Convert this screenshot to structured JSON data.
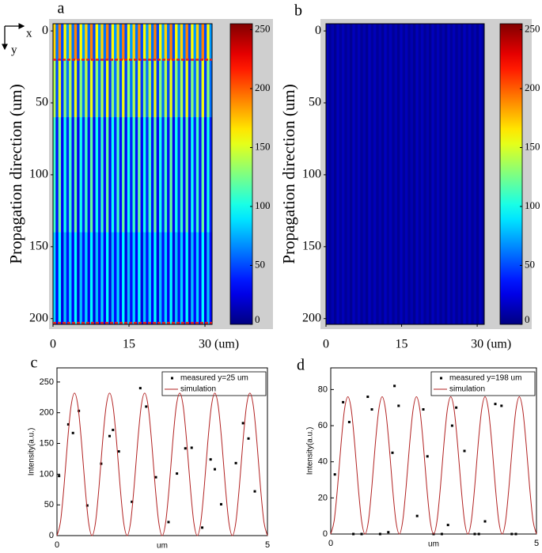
{
  "axes_icon": {
    "x": "x",
    "y": "y"
  },
  "chart_data": [
    {
      "type": "heatmap",
      "panel": "a",
      "ylabel": "Propagation direction (um)",
      "xlim": [
        0,
        31.4
      ],
      "ylim": [
        -5,
        204
      ],
      "y_inverted": true,
      "xticks": [
        0,
        15,
        {
          "value": 30,
          "label": "30 (um)"
        }
      ],
      "yticks": [
        0,
        50,
        100,
        150,
        200
      ],
      "ybins": [
        -5,
        20,
        60,
        140,
        204
      ],
      "z": [
        [
          170,
          60,
          190,
          50,
          160,
          70,
          170,
          60,
          190,
          50,
          160,
          70,
          170,
          60,
          190,
          50,
          160,
          70,
          170,
          60,
          190,
          50,
          160,
          70,
          170,
          60,
          190,
          50,
          160,
          70,
          170,
          60,
          190,
          50,
          160,
          70,
          170,
          60,
          190,
          50,
          160,
          70,
          170,
          60,
          190,
          50,
          160,
          70,
          170,
          60,
          190,
          50,
          160,
          70,
          170,
          60,
          190,
          50,
          160,
          70
        ],
        [
          140,
          50,
          155,
          45,
          130,
          60,
          140,
          50,
          155,
          45,
          130,
          60,
          140,
          50,
          155,
          45,
          130,
          60,
          140,
          50,
          155,
          45,
          130,
          60,
          140,
          50,
          155,
          45,
          130,
          60,
          140,
          50,
          155,
          45,
          130,
          60,
          140,
          50,
          155,
          45,
          130,
          60,
          140,
          50,
          155,
          45,
          130,
          60,
          140,
          50,
          155,
          45,
          130,
          60,
          140,
          50,
          155,
          45,
          130,
          60
        ],
        [
          110,
          35,
          120,
          30,
          100,
          40,
          110,
          35,
          120,
          30,
          100,
          40,
          110,
          35,
          120,
          30,
          100,
          40,
          110,
          35,
          120,
          30,
          100,
          40,
          110,
          35,
          120,
          30,
          100,
          40,
          110,
          35,
          120,
          30,
          100,
          40,
          110,
          35,
          120,
          30,
          100,
          40,
          110,
          35,
          120,
          30,
          100,
          40,
          110,
          35,
          120,
          30,
          100,
          40,
          110,
          35,
          120,
          30,
          100,
          40
        ],
        [
          85,
          30,
          95,
          25,
          80,
          35,
          85,
          30,
          95,
          25,
          80,
          35,
          85,
          30,
          95,
          25,
          80,
          35,
          85,
          30,
          95,
          25,
          80,
          35,
          85,
          30,
          95,
          25,
          80,
          35,
          85,
          30,
          95,
          25,
          80,
          35,
          85,
          30,
          95,
          25,
          80,
          35,
          85,
          30,
          95,
          25,
          80,
          35,
          85,
          30,
          95,
          25,
          80,
          35,
          85,
          30,
          95,
          25,
          80,
          35
        ]
      ],
      "hlines": [
        20,
        203
      ],
      "hline_color": "#e02020",
      "colorbar": {
        "lim": [
          0,
          255
        ],
        "ticks": [
          0,
          50,
          100,
          150,
          200,
          250
        ]
      }
    },
    {
      "type": "heatmap",
      "panel": "b",
      "ylabel": "Propagation direction (um)",
      "xlim": [
        0,
        31.4
      ],
      "ylim": [
        -5,
        204
      ],
      "y_inverted": true,
      "xticks": [
        0,
        15,
        {
          "value": 30,
          "label": "30 (um)"
        }
      ],
      "yticks": [
        0,
        50,
        100,
        150,
        200
      ],
      "ybins": [
        -5,
        204
      ],
      "z": [
        [
          14,
          6,
          12,
          5,
          15,
          7,
          14,
          6,
          12,
          5,
          15,
          7,
          14,
          6,
          12,
          5,
          15,
          7,
          14,
          6,
          12,
          5,
          15,
          7,
          14,
          6,
          12,
          5,
          15,
          7,
          14,
          6,
          12,
          5,
          15,
          7,
          14,
          6,
          12,
          5,
          15,
          7,
          14,
          6,
          12,
          5,
          15,
          7,
          14,
          6,
          12,
          5,
          15,
          7,
          14,
          6,
          12,
          5,
          15,
          7
        ]
      ],
      "colorbar": {
        "lim": [
          0,
          255
        ],
        "ticks": [
          0,
          50,
          100,
          150,
          200,
          250
        ]
      }
    },
    {
      "type": "line",
      "panel": "c",
      "xlabel": "um",
      "ylabel": "Intensity(a.u.)",
      "xlim": [
        0,
        5
      ],
      "ylim": [
        0,
        273
      ],
      "xticks": [
        0,
        5
      ],
      "yticks": [
        0,
        50,
        100,
        150,
        200,
        250
      ],
      "series": [
        {
          "name": "measured y=25 um",
          "mode": "markers",
          "color": "#000000",
          "x": [
            0.05,
            0.27,
            0.38,
            0.52,
            0.72,
            1.05,
            1.25,
            1.33,
            1.47,
            1.78,
            1.98,
            2.12,
            2.35,
            2.65,
            2.85,
            3.05,
            3.2,
            3.45,
            3.65,
            3.75,
            3.9,
            4.25,
            4.42,
            4.55,
            4.7
          ],
          "values": [
            97,
            181,
            167,
            203,
            49,
            117,
            162,
            172,
            137,
            55,
            240,
            210,
            95,
            22,
            101,
            142,
            143,
            13,
            124,
            108,
            51,
            118,
            183,
            158,
            72
          ]
        },
        {
          "name": "simulation",
          "mode": "line",
          "color": "#b22222",
          "x": [
            0,
            0.083,
            0.167,
            0.25,
            0.333,
            0.417,
            0.5,
            0.583,
            0.667,
            0.75,
            0.833,
            0.917,
            1,
            1.083,
            1.167,
            1.25,
            1.333,
            1.417,
            1.5,
            1.583,
            1.667,
            1.75,
            1.833,
            1.917,
            2,
            2.083,
            2.167,
            2.25,
            2.333,
            2.417,
            2.5,
            2.583,
            2.667,
            2.75,
            2.833,
            2.917,
            3,
            3.083,
            3.167,
            3.25,
            3.333,
            3.417,
            3.5,
            3.583,
            3.667,
            3.75,
            3.833,
            3.917,
            4,
            4.083,
            4.167,
            4.25,
            4.333,
            4.417,
            4.5,
            4.583,
            4.667,
            4.75,
            4.833,
            4.917,
            5
          ],
          "values": [
            0,
            22,
            80,
            152,
            210,
            232,
            210,
            152,
            80,
            22,
            0,
            22,
            80,
            152,
            210,
            232,
            210,
            152,
            80,
            22,
            0,
            22,
            80,
            152,
            210,
            232,
            210,
            152,
            80,
            22,
            0,
            22,
            80,
            152,
            210,
            232,
            210,
            152,
            80,
            22,
            0,
            22,
            80,
            152,
            210,
            232,
            210,
            152,
            80,
            22,
            0,
            22,
            80,
            152,
            210,
            232,
            210,
            152,
            80,
            22,
            0
          ]
        }
      ]
    },
    {
      "type": "line",
      "panel": "d",
      "xlabel": "um",
      "ylabel": "Intensity(a.u.)",
      "xlim": [
        0,
        5
      ],
      "ylim": [
        0,
        92
      ],
      "xticks": [
        0,
        5
      ],
      "yticks": [
        0,
        20,
        40,
        60,
        80
      ],
      "series": [
        {
          "name": "measured y=198 um",
          "mode": "markers",
          "color": "#000000",
          "x": [
            0.1,
            0.3,
            0.45,
            0.55,
            0.75,
            0.9,
            1.0,
            1.2,
            1.4,
            1.5,
            1.55,
            1.65,
            2.1,
            2.25,
            2.35,
            2.5,
            2.7,
            2.85,
            2.95,
            3.05,
            3.25,
            3.5,
            3.6,
            3.75,
            4.0,
            4.15,
            4.4,
            4.5
          ],
          "values": [
            33,
            73,
            62,
            0,
            0,
            76,
            69,
            0,
            1,
            45,
            82,
            71,
            10,
            69,
            43,
            0,
            0,
            5,
            60,
            70,
            46,
            0,
            0,
            7,
            72,
            71,
            0,
            0
          ]
        },
        {
          "name": "simulation",
          "mode": "line",
          "color": "#b22222",
          "x": [
            0,
            0.083,
            0.167,
            0.25,
            0.333,
            0.417,
            0.5,
            0.583,
            0.667,
            0.75,
            0.833,
            0.917,
            1,
            1.083,
            1.167,
            1.25,
            1.333,
            1.417,
            1.5,
            1.583,
            1.667,
            1.75,
            1.833,
            1.917,
            2,
            2.083,
            2.167,
            2.25,
            2.333,
            2.417,
            2.5,
            2.583,
            2.667,
            2.75,
            2.833,
            2.917,
            3,
            3.083,
            3.167,
            3.25,
            3.333,
            3.417,
            3.5,
            3.583,
            3.667,
            3.75,
            3.833,
            3.917,
            4,
            4.083,
            4.167,
            4.25,
            4.333,
            4.417,
            4.5,
            4.583,
            4.667,
            4.75,
            4.833,
            4.917,
            5
          ],
          "values": [
            0,
            7.3,
            26.3,
            49.7,
            68.7,
            76,
            68.7,
            49.7,
            26.3,
            7.3,
            0,
            7.3,
            26.3,
            49.7,
            68.7,
            76,
            68.7,
            49.7,
            26.3,
            7.3,
            0,
            7.3,
            26.3,
            49.7,
            68.7,
            76,
            68.7,
            49.7,
            26.3,
            7.3,
            0,
            7.3,
            26.3,
            49.7,
            68.7,
            76,
            68.7,
            49.7,
            26.3,
            7.3,
            0,
            7.3,
            26.3,
            49.7,
            68.7,
            76,
            68.7,
            49.7,
            26.3,
            7.3,
            0,
            7.3,
            26.3,
            49.7,
            68.7,
            76,
            68.7,
            49.7,
            26.3,
            7.3,
            0
          ]
        }
      ]
    }
  ]
}
